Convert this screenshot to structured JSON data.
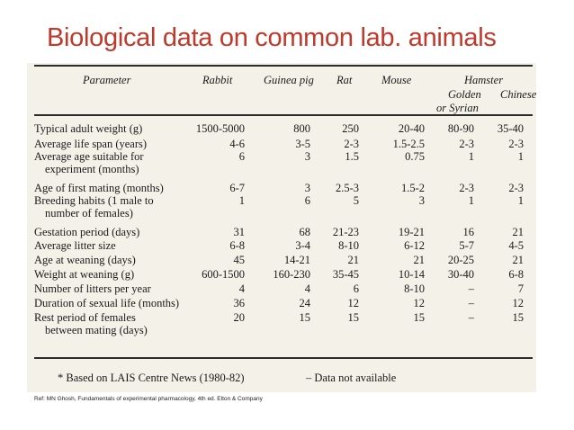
{
  "title": "Biological data on common lab. animals",
  "table": {
    "headers": {
      "parameter": "Parameter",
      "rabbit": "Rabbit",
      "guinea_pig": "Guinea pig",
      "rat": "Rat",
      "mouse": "Mouse",
      "hamster": "Hamster",
      "golden_line1": "Golden",
      "golden_line2": "or Syrian",
      "chinese": "Chinese"
    },
    "rows": [
      {
        "param": "Typical adult weight (g)",
        "values": [
          "1500-5000",
          "800",
          "250",
          "20-40",
          "80-90",
          "35-40"
        ]
      },
      {
        "param": "Average life span (years)",
        "values": [
          "4-6",
          "3-5",
          "2-3",
          "1.5-2.5",
          "2-3",
          "2-3"
        ]
      },
      {
        "param": "Average age suitable for",
        "param2": "experiment (months)",
        "values": [
          "6",
          "3",
          "1.5",
          "0.75",
          "1",
          "1"
        ]
      },
      {
        "param": "Age of first mating (months)",
        "values": [
          "6-7",
          "3",
          "2.5-3",
          "1.5-2",
          "2-3",
          "2-3"
        ]
      },
      {
        "param": "Breeding habits (1 male to",
        "param2": "number of females)",
        "values": [
          "1",
          "6",
          "5",
          "3",
          "1",
          "1"
        ]
      },
      {
        "param": "Gestation period (days)",
        "values": [
          "31",
          "68",
          "21-23",
          "19-21",
          "16",
          "21"
        ]
      },
      {
        "param": "Average litter size",
        "values": [
          "6-8",
          "3-4",
          "8-10",
          "6-12",
          "5-7",
          "4-5"
        ]
      },
      {
        "param": "Age at weaning (days)",
        "values": [
          "45",
          "14-21",
          "21",
          "21",
          "20-25",
          "21"
        ]
      },
      {
        "param": "Weight at weaning (g)",
        "values": [
          "600-1500",
          "160-230",
          "35-45",
          "10-14",
          "30-40",
          "6-8"
        ]
      },
      {
        "param": "Number of litters per year",
        "values": [
          "4",
          "4",
          "6",
          "8-10",
          "–",
          "7"
        ]
      },
      {
        "param": "Duration of sexual life (months)",
        "values": [
          "36",
          "24",
          "12",
          "12",
          "–",
          "12"
        ]
      },
      {
        "param": "Rest period of females",
        "param2": "between mating (days)",
        "values": [
          "20",
          "15",
          "15",
          "15",
          "–",
          "15"
        ]
      }
    ],
    "footnote_left": "* Based on LAIS Centre News (1980-82)",
    "footnote_right": "– Data not available"
  },
  "reference": "Ref: MN Ghosh, Fundamentals of experimental pharmacology, 4th ed. Elton & Company"
}
